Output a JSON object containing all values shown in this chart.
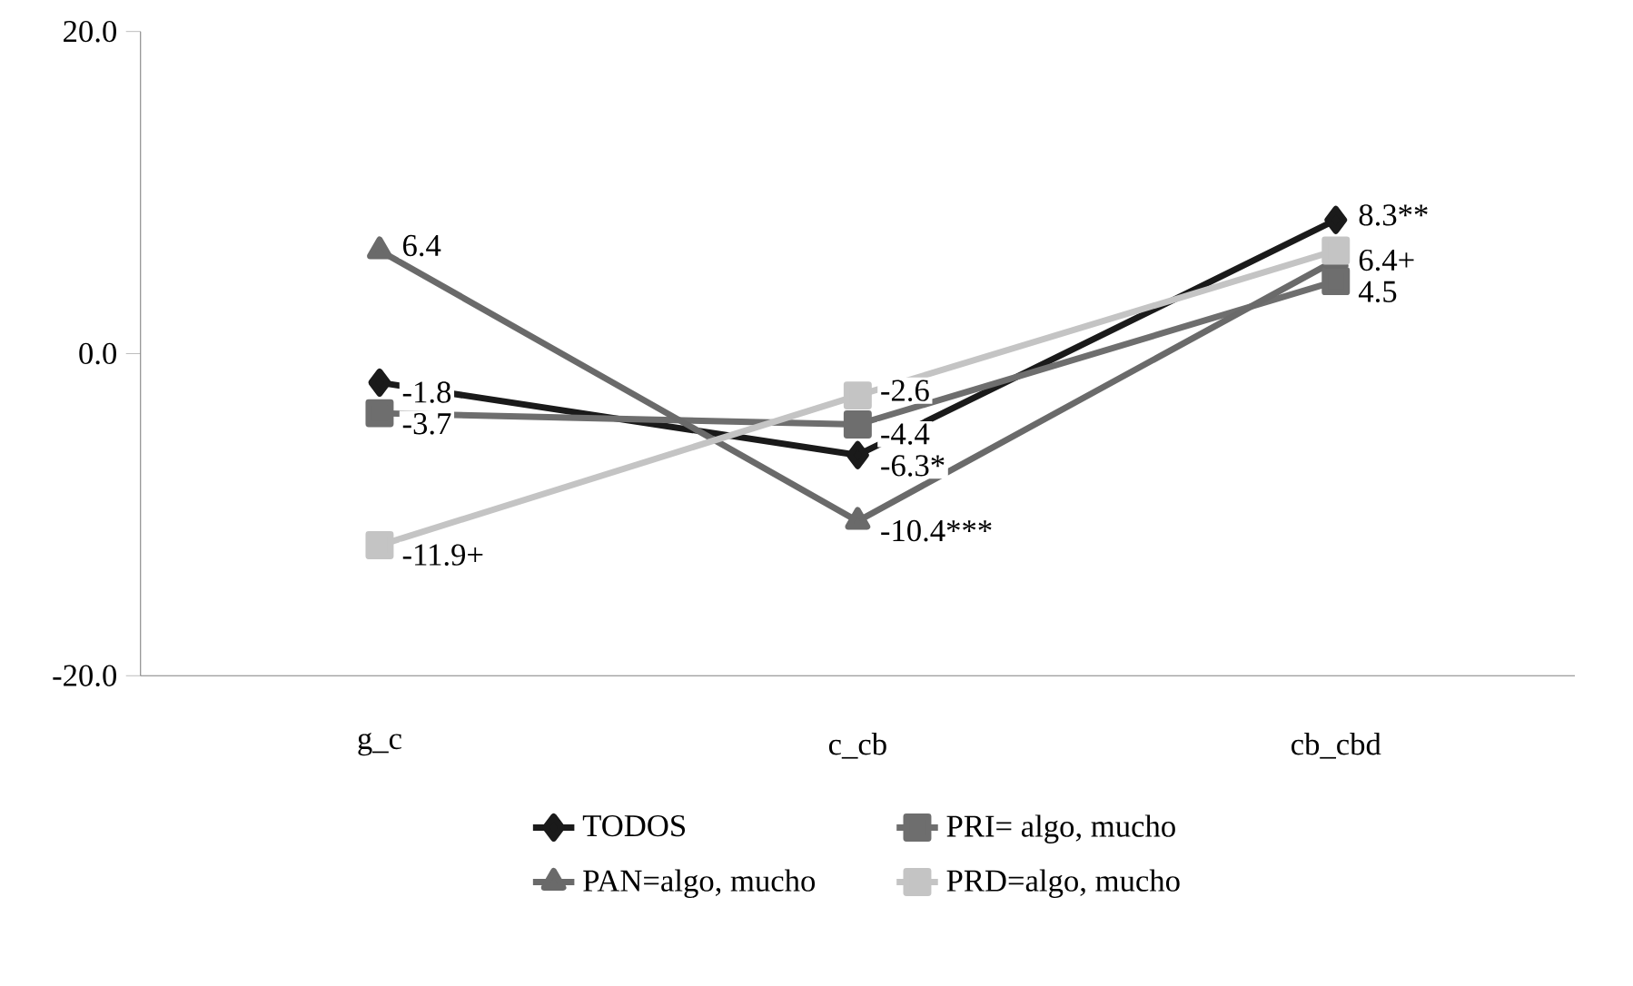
{
  "chart_data": {
    "type": "line",
    "categories": [
      "g_c",
      "c_cb",
      "cb_cbd"
    ],
    "ylim": [
      -20,
      20
    ],
    "yticks": [
      {
        "value": -20,
        "label": "-20.0"
      },
      {
        "value": 0,
        "label": "0.0"
      },
      {
        "value": 20,
        "label": "20.0"
      }
    ],
    "grid": false,
    "legend": "bottom",
    "series": [
      {
        "name": "TODOS",
        "color": "#1a1a1a",
        "marker": "diamond",
        "values": [
          -1.8,
          -6.3,
          8.3
        ],
        "value_labels": [
          "-1.8",
          "-6.3*",
          "8.3**"
        ]
      },
      {
        "name": "PRI= algo, mucho",
        "color": "#6e6e6e",
        "marker": "square",
        "values": [
          -3.7,
          -4.4,
          4.5
        ],
        "value_labels": [
          "-3.7",
          "-4.4",
          "4.5"
        ]
      },
      {
        "name": "PAN=algo, mucho",
        "color": "#6a6a6a",
        "marker": "triangle",
        "values": [
          6.4,
          -10.4,
          5.8
        ],
        "value_labels": [
          "6.4",
          "-10.4***",
          null
        ]
      },
      {
        "name": "PRD=algo, mucho",
        "color": "#c4c4c4",
        "marker": "square",
        "values": [
          -11.9,
          -2.6,
          6.4
        ],
        "value_labels": [
          "-11.9+",
          "-2.6",
          "6.4+"
        ]
      }
    ]
  }
}
